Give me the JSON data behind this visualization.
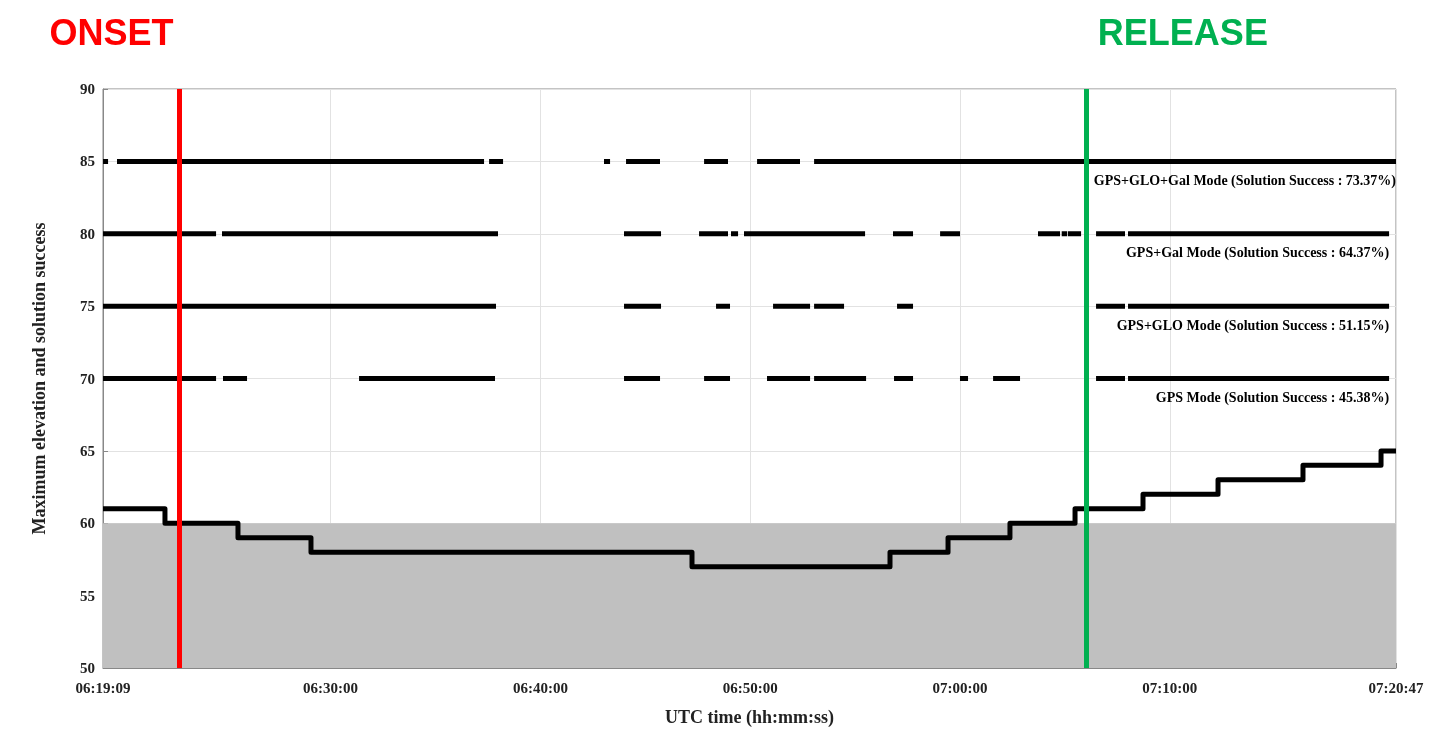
{
  "chart_data": {
    "type": "line",
    "xlabel": "UTC time (hh:mm:ss)",
    "ylabel": "Maximum elevation and solution success",
    "xlim": [
      6.31917,
      7.34639
    ],
    "xticks": [
      {
        "value": 6.31917,
        "label": "06:19:09"
      },
      {
        "value": 6.5,
        "label": "06:30:00"
      },
      {
        "value": 6.66667,
        "label": "06:40:00"
      },
      {
        "value": 6.83333,
        "label": "06:50:00"
      },
      {
        "value": 7,
        "label": "07:00:00"
      },
      {
        "value": 7.16667,
        "label": "07:10:00"
      },
      {
        "value": 7.34639,
        "label": "07:20:47"
      }
    ],
    "ylim": [
      50,
      90
    ],
    "yticks": [
      50,
      55,
      60,
      65,
      70,
      75,
      80,
      85,
      90
    ],
    "grid": true,
    "legend": false,
    "marker": "none",
    "line_style": "solid",
    "bands": [
      {
        "axis": "y",
        "from": 50,
        "to": 60,
        "color": "#c0c0c0"
      }
    ],
    "ref_lines": [
      {
        "axis": "x",
        "value": 6.3803,
        "label": "ONSET",
        "color": "#ff0000"
      },
      {
        "axis": "x",
        "value": 7.1009,
        "label": "RELEASE",
        "color": "#00b050"
      }
    ],
    "series": [
      {
        "type": "step",
        "color": "#000000",
        "x": [
          6.31917,
          6.3684,
          6.4264,
          6.4844,
          6.7871,
          6.9444,
          6.9905,
          7.0397,
          7.0914,
          7.1454,
          7.205,
          7.2725,
          7.3345,
          7.34639
        ],
        "values": [
          61,
          60,
          59,
          58,
          57,
          58,
          59,
          60,
          61,
          62,
          63,
          64,
          65,
          65
        ]
      },
      {
        "name": "GPS+GLO+Gal Mode (Solution Success : 73.37%)",
        "color": "#000000",
        "x": [
          6.3192,
          6.3232,
          null,
          6.3303,
          6.6219,
          null,
          6.6259,
          6.637,
          null,
          6.7172,
          6.722,
          null,
          6.7347,
          6.7617,
          null,
          6.7967,
          6.8157,
          null,
          6.8388,
          6.8729,
          null,
          6.8841,
          7.34639
        ],
        "values": [
          85,
          85,
          null,
          85,
          85,
          null,
          85,
          85,
          null,
          85,
          85,
          null,
          85,
          85,
          null,
          85,
          85,
          null,
          85,
          85,
          null,
          85,
          85
        ]
      },
      {
        "name": "GPS+Gal Mode (Solution Success : 64.37%)",
        "color": "#000000",
        "x": [
          6.3192,
          6.409,
          null,
          6.4137,
          6.633,
          null,
          6.7331,
          6.7625,
          null,
          6.7927,
          6.8157,
          null,
          6.8181,
          6.8237,
          null,
          6.8284,
          6.9246,
          null,
          6.9468,
          6.9627,
          null,
          6.9842,
          7.0,
          null,
          7.062,
          7.0795,
          null,
          7.0808,
          7.0852,
          null,
          7.0858,
          7.0962,
          null,
          7.1081,
          7.1311,
          null,
          7.1335,
          7.3409
        ],
        "values": [
          80,
          80,
          null,
          80,
          80,
          null,
          80,
          80,
          null,
          80,
          80,
          null,
          80,
          80,
          null,
          80,
          80,
          null,
          80,
          80,
          null,
          80,
          80,
          null,
          80,
          80,
          null,
          80,
          80,
          null,
          80,
          80,
          null,
          80,
          80,
          null,
          80,
          80
        ]
      },
      {
        "name": "GPS+GLO Mode (Solution Success : 51.15%)",
        "color": "#000000",
        "x": [
          6.3192,
          6.6314,
          null,
          6.7331,
          6.7625,
          null,
          6.8062,
          6.8173,
          null,
          6.8515,
          6.8809,
          null,
          6.8841,
          6.9079,
          null,
          6.95,
          6.9627,
          null,
          7.1081,
          7.1311,
          null,
          7.1335,
          7.3409
        ],
        "values": [
          75,
          75,
          null,
          75,
          75,
          null,
          75,
          75,
          null,
          75,
          75,
          null,
          75,
          75,
          null,
          75,
          75,
          null,
          75,
          75,
          null,
          75,
          75
        ]
      },
      {
        "name": "GPS Mode (Solution Success : 45.38%)",
        "color": "#000000",
        "x": [
          6.3192,
          6.409,
          null,
          6.4145,
          6.4336,
          null,
          6.5226,
          6.6306,
          null,
          6.7331,
          6.7617,
          null,
          6.7967,
          6.8173,
          null,
          6.8467,
          6.8809,
          null,
          6.8841,
          6.9254,
          null,
          6.9476,
          6.9627,
          null,
          7.0,
          7.0064,
          null,
          7.0263,
          7.0477,
          null,
          7.1081,
          7.1311,
          null,
          7.1335,
          7.3409
        ],
        "values": [
          70,
          70,
          null,
          70,
          70,
          null,
          70,
          70,
          null,
          70,
          70,
          null,
          70,
          70,
          null,
          70,
          70,
          null,
          70,
          70,
          null,
          70,
          70,
          null,
          70,
          70,
          null,
          70,
          70,
          null,
          70,
          70,
          null,
          70,
          70
        ]
      }
    ]
  }
}
